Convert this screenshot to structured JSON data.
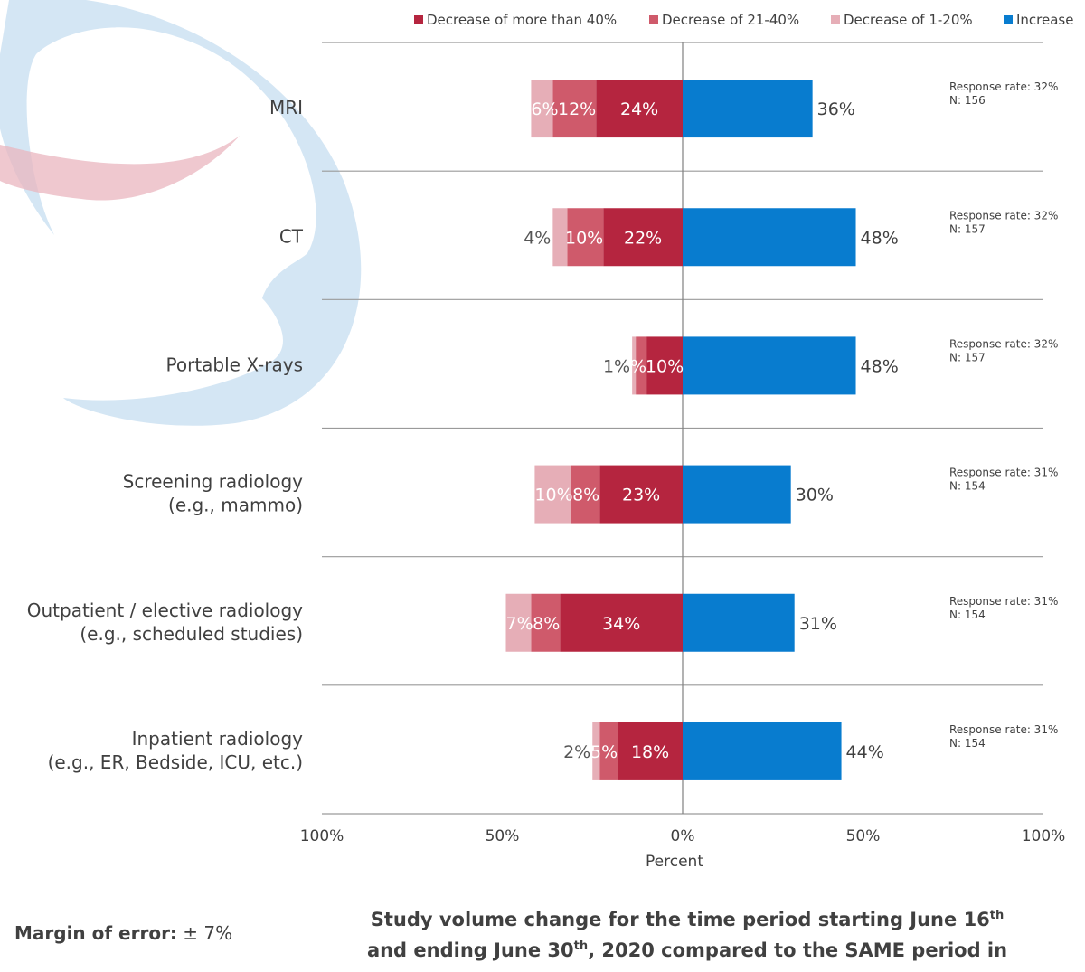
{
  "chart_data": {
    "type": "bar",
    "orientation": "horizontal-diverging",
    "categories": [
      [
        "MRI"
      ],
      [
        "CT"
      ],
      [
        "Portable X-rays"
      ],
      [
        "Screening radiology",
        "(e.g., mammo)"
      ],
      [
        "Outpatient / elective radiology",
        "(e.g., scheduled studies)"
      ],
      [
        "Inpatient radiology",
        "(e.g., ER, Bedside, ICU, etc.)"
      ]
    ],
    "series": [
      {
        "name": "Decrease of more than 40%",
        "color": "#b5253f",
        "side": "negative",
        "values": [
          24,
          22,
          10,
          23,
          34,
          18
        ]
      },
      {
        "name": "Decrease of 21-40%",
        "color": "#cf5a6b",
        "side": "negative",
        "values": [
          12,
          10,
          3,
          8,
          8,
          5
        ]
      },
      {
        "name": "Decrease of 1-20%",
        "color": "#e6aeb7",
        "side": "negative",
        "values": [
          6,
          4,
          1,
          10,
          7,
          2
        ]
      },
      {
        "name": "Increase",
        "color": "#087ccf",
        "side": "positive",
        "values": [
          36,
          48,
          48,
          30,
          31,
          44
        ]
      }
    ],
    "data_labels": [
      [
        "24%",
        "12%",
        "6%",
        "36%"
      ],
      [
        "22%",
        "10%",
        "4%",
        "48%"
      ],
      [
        "10%",
        "3%",
        "1%",
        "48%"
      ],
      [
        "23%",
        "8%",
        "10%",
        "30%"
      ],
      [
        "34%",
        "8%",
        "7%",
        "31%"
      ],
      [
        "18%",
        "5%",
        "2%",
        "44%"
      ]
    ],
    "annotations": [
      [
        "Response rate: 32%",
        "N: 156"
      ],
      [
        "Response rate: 32%",
        "N: 157"
      ],
      [
        "Response rate: 32%",
        "N: 157"
      ],
      [
        "Response rate: 31%",
        "N: 154"
      ],
      [
        "Response rate: 31%",
        "N: 154"
      ],
      [
        "Response rate: 31%",
        "N: 154"
      ]
    ],
    "x_ticks": [
      "100%",
      "50%",
      "0%",
      "50%",
      "100%"
    ],
    "xlim": [
      -100,
      100
    ],
    "xlabel": "Percent",
    "ylabel": "",
    "legend_position": "top-right",
    "grid": "horizontal separators between categories"
  },
  "footer": {
    "margin_label": "Margin of error:",
    "margin_value": "± 7%",
    "title_line1_a": "Study volume change for the time period starting June 16",
    "title_line1_sup": "th",
    "title_line2_a": "and ending June 30",
    "title_line2_sup": "th",
    "title_line2_b": ", 2020 compared to the SAME period in"
  }
}
